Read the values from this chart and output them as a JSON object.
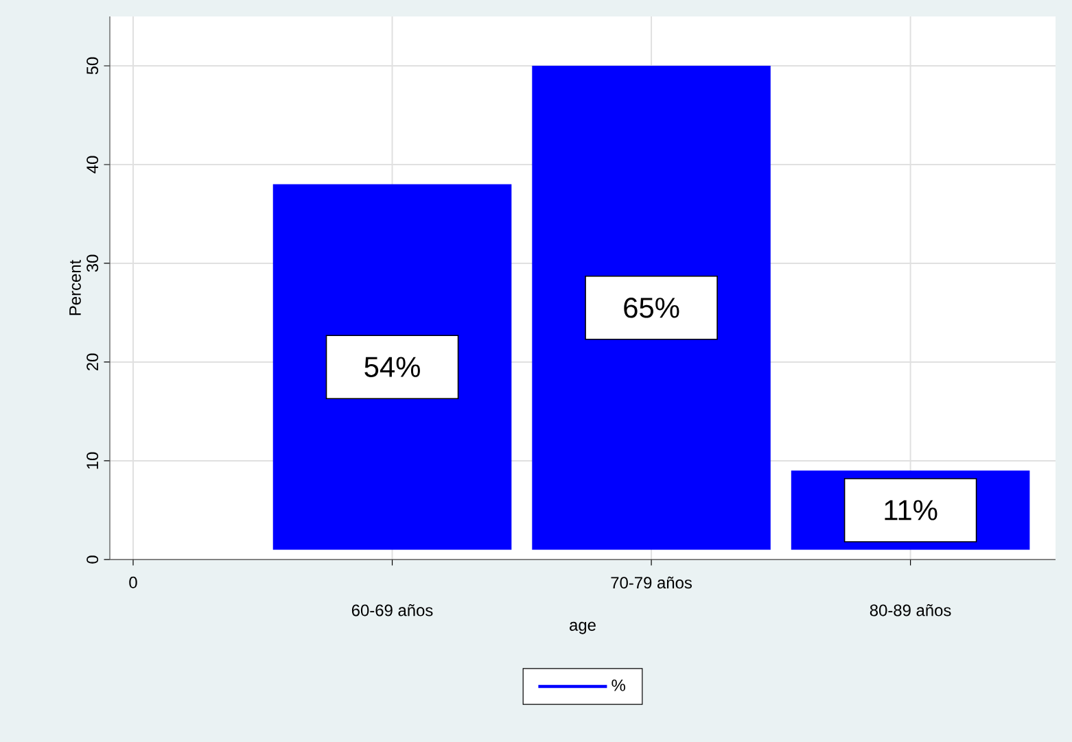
{
  "chart_data": {
    "type": "bar",
    "categories": [
      "0",
      "60-69 años",
      "70-79 años",
      "80-89 años"
    ],
    "series": [
      {
        "name": "%",
        "color": "#0000ff",
        "values": [
          null,
          37,
          49,
          8
        ],
        "base": [
          null,
          1,
          1,
          1
        ]
      }
    ],
    "ylim": [
      0,
      55
    ],
    "yticks": [
      0,
      10,
      20,
      30,
      40,
      50
    ],
    "xlabel": "age",
    "ylabel": "Percent",
    "grid": true,
    "legend": "bottom",
    "annotations": [
      "54%",
      "65%",
      "11%"
    ]
  }
}
